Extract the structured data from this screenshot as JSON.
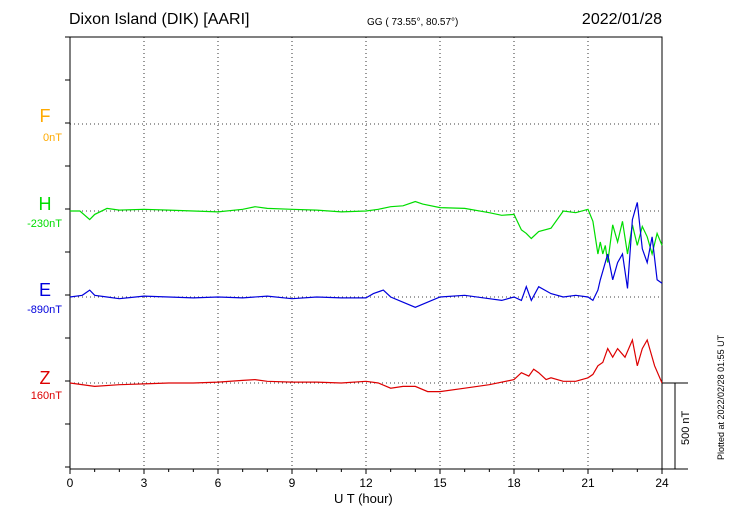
{
  "header": {
    "station": "Dixon Island (DIK)  [AARI]",
    "coords": "GG ( 73.55°,  80.57°)",
    "date": "2022/01/28"
  },
  "plotted": "Plotted at 2022/02/28 01:55 UT",
  "scale_label": "500 nT",
  "colors": {
    "F": "#ffaa00",
    "H": "#00dd00",
    "E": "#0000dd",
    "Z": "#dd0000"
  },
  "chart_data": {
    "type": "line",
    "title": "Dixon Island (DIK)  [AARI]",
    "xlabel": "U T (hour)",
    "ylabel": "",
    "xlim": [
      0,
      24
    ],
    "x_ticks": [
      "0",
      "3",
      "6",
      "9",
      "12",
      "15",
      "18",
      "21",
      "24"
    ],
    "grid": true,
    "series": [
      {
        "name": "F",
        "offset_label": "0nT",
        "color": "#ffaa00",
        "x": [],
        "y": []
      },
      {
        "name": "H",
        "offset_label": "-230nT",
        "color": "#00dd00",
        "x": [
          0,
          0.4,
          0.8,
          1,
          1.5,
          2,
          3,
          4,
          5,
          6,
          7,
          7.5,
          8,
          9,
          10,
          11,
          12,
          12.5,
          13,
          13.5,
          14,
          14.3,
          15,
          16,
          17,
          17.5,
          18,
          18.3,
          18.5,
          18.7,
          19,
          19.5,
          20,
          20.5,
          21,
          21.2,
          21.4,
          21.5,
          21.6,
          21.7,
          21.8,
          22,
          22.2,
          22.4,
          22.6,
          22.8,
          23,
          23.2,
          23.4,
          23.6,
          23.8,
          24
        ],
        "y": [
          0,
          0,
          -50,
          -20,
          15,
          5,
          10,
          5,
          0,
          -5,
          10,
          25,
          15,
          10,
          5,
          -5,
          0,
          10,
          25,
          30,
          55,
          40,
          20,
          15,
          -10,
          -25,
          -20,
          -110,
          -130,
          -160,
          -120,
          -100,
          0,
          -10,
          10,
          -60,
          -250,
          -180,
          -250,
          -200,
          -300,
          -80,
          -180,
          -60,
          -250,
          -80,
          -200,
          -90,
          -150,
          -250,
          -130,
          -200
        ]
      },
      {
        "name": "E",
        "offset_label": "-890nT",
        "color": "#0000dd",
        "x": [
          0,
          0.5,
          0.8,
          1,
          1.5,
          2,
          3,
          4,
          5,
          6,
          7,
          8,
          9,
          10,
          11,
          12,
          12.3,
          12.7,
          13,
          13.5,
          14,
          15,
          16,
          17,
          17.5,
          18,
          18.3,
          18.5,
          18.7,
          19,
          19.5,
          20,
          20.5,
          21,
          21.2,
          21.4,
          21.5,
          21.6,
          21.8,
          22,
          22.2,
          22.4,
          22.6,
          22.8,
          23,
          23.2,
          23.4,
          23.6,
          23.8,
          24
        ],
        "y": [
          0,
          10,
          40,
          10,
          0,
          -10,
          5,
          0,
          -5,
          0,
          -5,
          5,
          -10,
          0,
          -5,
          -5,
          20,
          40,
          0,
          -30,
          -60,
          0,
          10,
          -10,
          -20,
          0,
          -20,
          60,
          -20,
          60,
          20,
          0,
          10,
          0,
          -20,
          40,
          100,
          150,
          250,
          100,
          200,
          250,
          50,
          450,
          550,
          280,
          200,
          350,
          100,
          80
        ]
      },
      {
        "name": "Z",
        "offset_label": "160nT",
        "color": "#dd0000",
        "x": [
          0,
          1,
          2,
          3,
          4,
          5,
          6,
          7,
          7.5,
          8,
          9,
          10,
          11,
          12,
          12.5,
          13,
          13.5,
          14,
          14.5,
          15,
          16,
          17,
          18,
          18.3,
          18.6,
          18.8,
          19,
          19.3,
          19.5,
          20,
          20.5,
          21,
          21.2,
          21.4,
          21.6,
          21.8,
          22,
          22.2,
          22.5,
          22.8,
          23,
          23.2,
          23.4,
          23.7,
          24
        ],
        "y": [
          0,
          -20,
          -10,
          -5,
          0,
          0,
          5,
          15,
          20,
          10,
          5,
          5,
          0,
          10,
          0,
          -30,
          -20,
          -20,
          -50,
          -50,
          -30,
          -10,
          20,
          60,
          40,
          80,
          60,
          20,
          30,
          10,
          10,
          30,
          50,
          100,
          120,
          200,
          150,
          200,
          150,
          250,
          100,
          200,
          250,
          100,
          0
        ]
      }
    ]
  }
}
